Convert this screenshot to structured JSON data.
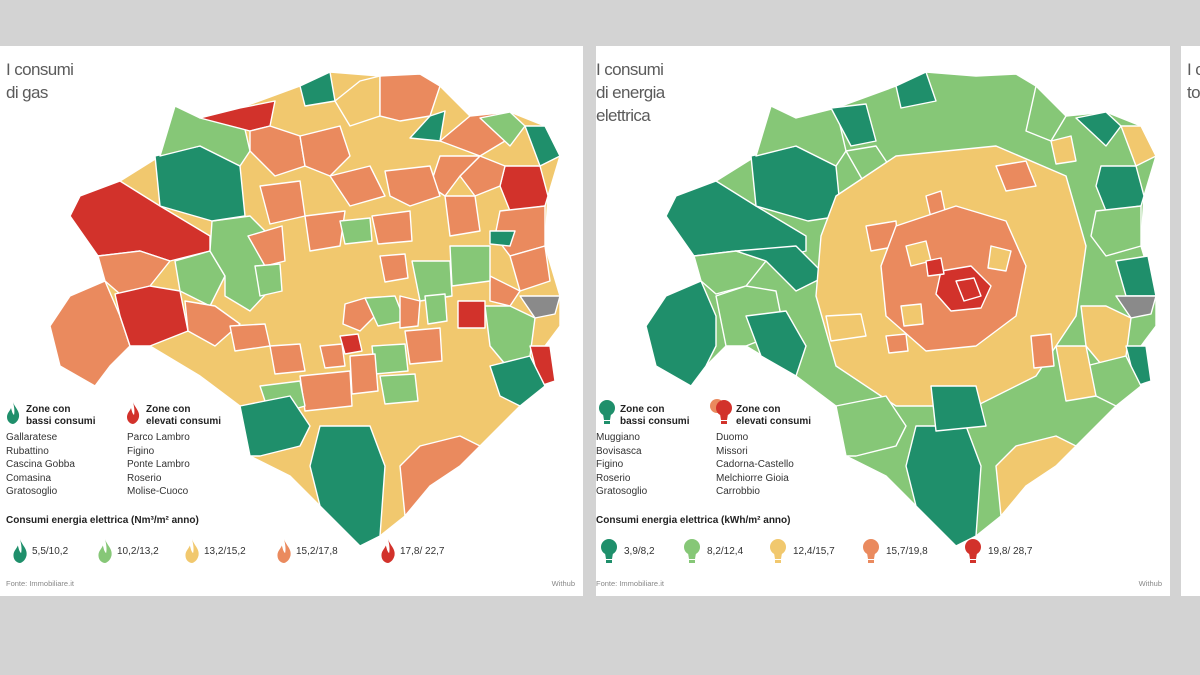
{
  "colors": {
    "background": "#d3d3d3",
    "panel": "#ffffff",
    "class1": "#1f8f6b",
    "class2": "#86c777",
    "class3": "#f1c86e",
    "class4": "#ea8a5e",
    "class5": "#d2322b",
    "no_data": "#8a8a8a"
  },
  "maps": [
    {
      "title_lines": [
        "I consumi",
        "di gas"
      ],
      "low_label": [
        "Zone con",
        "bassi consumi"
      ],
      "high_label": [
        "Zone con",
        "elevati consumi"
      ],
      "low_zones": [
        "Gallaratese",
        "Rubattino",
        "Cascina Gobba",
        "Comasina",
        "Gratosoglio"
      ],
      "high_zones": [
        "Parco Lambro",
        "Figino",
        "Ponte Lambro",
        "Roserio",
        "Molise-Cuoco"
      ],
      "scale_title": "Consumi energia elettrica (Nm³/m² anno)",
      "legend_icon": "flame-icon",
      "legend": [
        "5,5/10,2",
        "10,2/13,2",
        "13,2/15,2",
        "15,2/17,8",
        "17,8/ 22,7"
      ],
      "source": "Fonte: Immobiliare.it",
      "brand": "Withub"
    },
    {
      "title_lines": [
        "I consumi",
        "di energia",
        "elettrica"
      ],
      "low_label": [
        "Zone con",
        "bassi consumi"
      ],
      "high_label": [
        "Zone con",
        "elevati consumi"
      ],
      "low_zones": [
        "Muggiano",
        "Bovisasca",
        "Figino",
        "Roserio",
        "Gratosoglio"
      ],
      "high_zones": [
        "Duomo",
        "Missori",
        "Cadorna-Castello",
        "Melchiorre Gioia",
        "Carrobbio"
      ],
      "scale_title": "Consumi energia elettrica (kWh/m² anno)",
      "legend_icon": "lightbulb-icon",
      "legend": [
        "3,9/8,2",
        "8,2/12,4",
        "12,4/15,7",
        "15,7/19,8",
        "19,8/ 28,7"
      ],
      "source": "Fonte: Immobiliare.it",
      "brand": "Withub"
    },
    {
      "title_lines": [
        "I c",
        "to"
      ]
    }
  ]
}
